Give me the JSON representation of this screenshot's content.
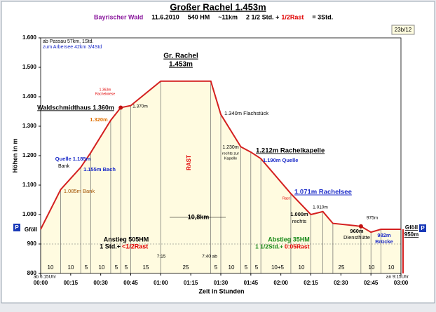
{
  "chart_data": {
    "type": "line",
    "title": "Großer Rachel 1.453m",
    "subtitle": [
      {
        "text": "Bayrischer Wald",
        "color": "#8b1a9e"
      },
      {
        "text": "11.6.2010",
        "color": "#000000"
      },
      {
        "text": "540 HM",
        "color": "#000000"
      },
      {
        "text": "~11km",
        "color": "#000000"
      },
      {
        "text": "2 1/2 Std. +",
        "color": "#000000"
      },
      {
        "text": "1/2Rast",
        "color": "#e00000"
      },
      {
        "text": "= 3Std.",
        "color": "#000000"
      }
    ],
    "badge": "23b/12",
    "info": [
      "ab Passau 57km, 1Std.",
      "zum Arbersee 42km 3/4Std"
    ],
    "xlabel": "Zeit in Stunden",
    "ylabel": "Höhen in m",
    "x": [
      0,
      10,
      20,
      25,
      35,
      40,
      45,
      60,
      85,
      90,
      100,
      105,
      110,
      125,
      135,
      141,
      146,
      160,
      165,
      170,
      180
    ],
    "values": [
      950,
      1085,
      1160,
      1210,
      1320,
      1363,
      1370,
      1453,
      1453,
      1340,
      1230,
      1212,
      1190,
      1071,
      1000,
      1010,
      970,
      960,
      940,
      950,
      950
    ],
    "color": "#d42020",
    "fill": "#fffbe0",
    "xlim": [
      0,
      180
    ],
    "xticks": [
      {
        "value": 0,
        "label": "00:00"
      },
      {
        "value": 15,
        "label": "00:15"
      },
      {
        "value": 30,
        "label": "00:30"
      },
      {
        "value": 45,
        "label": "00:45"
      },
      {
        "value": 60,
        "label": "01:00"
      },
      {
        "value": 75,
        "label": "01:15"
      },
      {
        "value": 90,
        "label": "01:30"
      },
      {
        "value": 105,
        "label": "01:45"
      },
      {
        "value": 120,
        "label": "02:00"
      },
      {
        "value": 135,
        "label": "02:15"
      },
      {
        "value": 150,
        "label": "02:30"
      },
      {
        "value": 165,
        "label": "02:45"
      },
      {
        "value": 180,
        "label": "03:00"
      }
    ],
    "ylim": [
      800,
      1600
    ],
    "yticks": [
      800,
      900,
      {
        "value": 1000,
        "label": "1.000"
      },
      {
        "value": 1100,
        "label": "1.100"
      },
      {
        "value": 1200,
        "label": "1.200"
      },
      {
        "value": 1300,
        "label": "1.300"
      },
      {
        "value": 1400,
        "label": "1.400"
      },
      {
        "value": 1500,
        "label": "1.500"
      },
      {
        "value": 1600,
        "label": "1.600"
      }
    ],
    "segment_labels": [
      "10",
      "10",
      "5",
      "10",
      "5",
      "5",
      "15",
      "25",
      "5",
      "10",
      "5",
      "5",
      "10+5",
      "10",
      "25",
      "10",
      "10"
    ],
    "time_labels": [
      "ab 6:15Uhr",
      "7:15",
      "7:40 ab",
      "an 9:15Uhr"
    ],
    "annotations": [
      {
        "text": "Gr. Rachel",
        "color": "#000000"
      },
      {
        "text": "1.453m",
        "color": "#000000"
      },
      {
        "text": "Waldschmidthaus 1.360m",
        "color": "#000000"
      },
      {
        "text": "1.370m",
        "color": "#000000"
      },
      {
        "text": "1.363m",
        "color": "#e00000"
      },
      {
        "text": "Rachelwiese",
        "color": "#e00000"
      },
      {
        "text": "1.320m",
        "color": "#e07000"
      },
      {
        "text": "1.340m Flachstück",
        "color": "#000000"
      },
      {
        "text": "Quelle 1.185m",
        "color": "#1a2ac8"
      },
      {
        "text": "Bank",
        "color": "#000000"
      },
      {
        "text": "1.155m Bach",
        "color": "#1a2ac8"
      },
      {
        "text": "1.085m Bank",
        "color": "#a05000"
      },
      {
        "text": "RAST",
        "color": "#e00000"
      },
      {
        "text": "1.230m",
        "color": "#000000"
      },
      {
        "text": "rechts zur",
        "color": "#000000"
      },
      {
        "text": "Kapelle",
        "color": "#000000"
      },
      {
        "text": "1.212m Rachelkapelle",
        "color": "#000000"
      },
      {
        "text": "1.190m Quelle",
        "color": "#1a2ac8"
      },
      {
        "text": "1.071m Rachelsee",
        "color": "#1a2ac8"
      },
      {
        "text": "Rast",
        "color": "#e00000"
      },
      {
        "text": "1.010m",
        "color": "#000000"
      },
      {
        "text": "1.000m",
        "color": "#000000"
      },
      {
        "text": "rechts",
        "color": "#000000"
      },
      {
        "text": "975m",
        "color": "#000000"
      },
      {
        "text": "960m",
        "color": "#000000"
      },
      {
        "text": "Diensthütte",
        "color": "#000000"
      },
      {
        "text": "982m",
        "color": "#1a2ac8"
      },
      {
        "text": "Brücke",
        "color": "#1a2ac8"
      },
      {
        "text": "10,8km",
        "color": "#000000"
      },
      {
        "text": "Anstieg 505HM",
        "color": "#000000"
      },
      {
        "text": "1 Std.+",
        "color": "#000000"
      },
      {
        "text": "<1/2Rast",
        "color": "#e00000"
      },
      {
        "text": "Abstieg 35HM",
        "color": "#1a8a1a"
      },
      {
        "text": "1 1/2Std.+",
        "color": "#1a8a1a"
      },
      {
        "text": "0:05Rast",
        "color": "#e00000"
      },
      {
        "text": "Gföll",
        "color": "#000000"
      },
      {
        "text": "Gföll",
        "color": "#000000"
      },
      {
        "text": "950m",
        "color": "#000000"
      },
      {
        "text": "P",
        "color": "#ffffff"
      },
      {
        "text": "P",
        "color": "#ffffff"
      }
    ]
  }
}
